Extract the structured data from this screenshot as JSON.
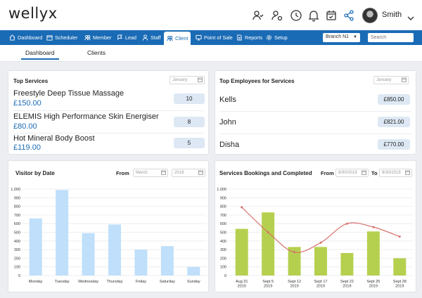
{
  "app": {
    "logo": "wellyx",
    "user": "Smith"
  },
  "nav": {
    "items": [
      {
        "label": "Dashboard",
        "icon": "home-icon"
      },
      {
        "label": "Scheduler",
        "icon": "calendar-icon"
      },
      {
        "label": "Member",
        "icon": "members-icon"
      },
      {
        "label": "Lead",
        "icon": "lead-icon"
      },
      {
        "label": "Staff",
        "icon": "staff-icon"
      },
      {
        "label": "Client",
        "icon": "client-icon"
      },
      {
        "label": "Point of Sale",
        "icon": "monitor-icon"
      },
      {
        "label": "Reports",
        "icon": "report-icon"
      },
      {
        "label": "Setup",
        "icon": "gear-icon"
      }
    ],
    "active": "Client",
    "branch": "Branch N1",
    "search_placeholder": "Search"
  },
  "subtabs": [
    "Dashboard",
    "Clients"
  ],
  "top_services": {
    "title": "Top Services",
    "filter": "January",
    "rows": [
      {
        "name": "Freestyle Deep Tissue Massage",
        "price": "£150.00",
        "count": "10"
      },
      {
        "name": "ELEMIS High Performance Skin Energiser",
        "price": "£80.00",
        "count": "8"
      },
      {
        "name": "Hot Mineral Body Boost",
        "price": "£119.00",
        "count": "5"
      }
    ]
  },
  "top_employees": {
    "title": "Top Employees for Services",
    "filter": "January",
    "rows": [
      {
        "name": "Kells",
        "amount": "£850.00"
      },
      {
        "name": "John",
        "amount": "£821.00"
      },
      {
        "name": "Disha",
        "amount": "£770.00"
      }
    ]
  },
  "visitor": {
    "title": "Visitor by Date",
    "from_label": "From",
    "month": "March",
    "year": "2019"
  },
  "bookings": {
    "title": "Services Bookings and Completed",
    "from_label": "From",
    "to_label": "To",
    "from_date": "8/30/2019",
    "to_date": "9/30/2019"
  },
  "colors": {
    "brand": "#1a6bb5",
    "bar_blue": "#bfdffa",
    "bar_green": "#b5d04f",
    "line_red": "#d9706c"
  },
  "chart_data": [
    {
      "type": "bar",
      "categories": [
        "Monday",
        "Tuesday",
        "Wednesday",
        "Thursday",
        "Friday",
        "Saturday",
        "Sunday"
      ],
      "values": [
        660,
        990,
        490,
        590,
        300,
        340,
        100
      ],
      "ylim": [
        0,
        1000
      ],
      "yticks": [
        "0",
        "100",
        "200",
        "300",
        "400",
        "500",
        "600",
        "700",
        "800",
        "900",
        "1,000"
      ],
      "grid": true
    },
    {
      "type": "bar",
      "categories": [
        [
          "Aug 31",
          "2019"
        ],
        [
          "Sept 5",
          "2019"
        ],
        [
          "Sept 12",
          "2019"
        ],
        [
          "Sept 17",
          "2019"
        ],
        [
          "Sept 22",
          "2019"
        ],
        [
          "Sept 25",
          "2019"
        ],
        [
          "Sept 28",
          "2019"
        ]
      ],
      "values": [
        540,
        730,
        330,
        330,
        260,
        510,
        200
      ],
      "line": [
        790,
        500,
        270,
        380,
        600,
        560,
        450
      ],
      "ylim": [
        0,
        1000
      ],
      "yticks": [
        "0",
        "100",
        "200",
        "300",
        "400",
        "500",
        "600",
        "700",
        "800",
        "900",
        "1,000"
      ],
      "grid": true
    }
  ]
}
